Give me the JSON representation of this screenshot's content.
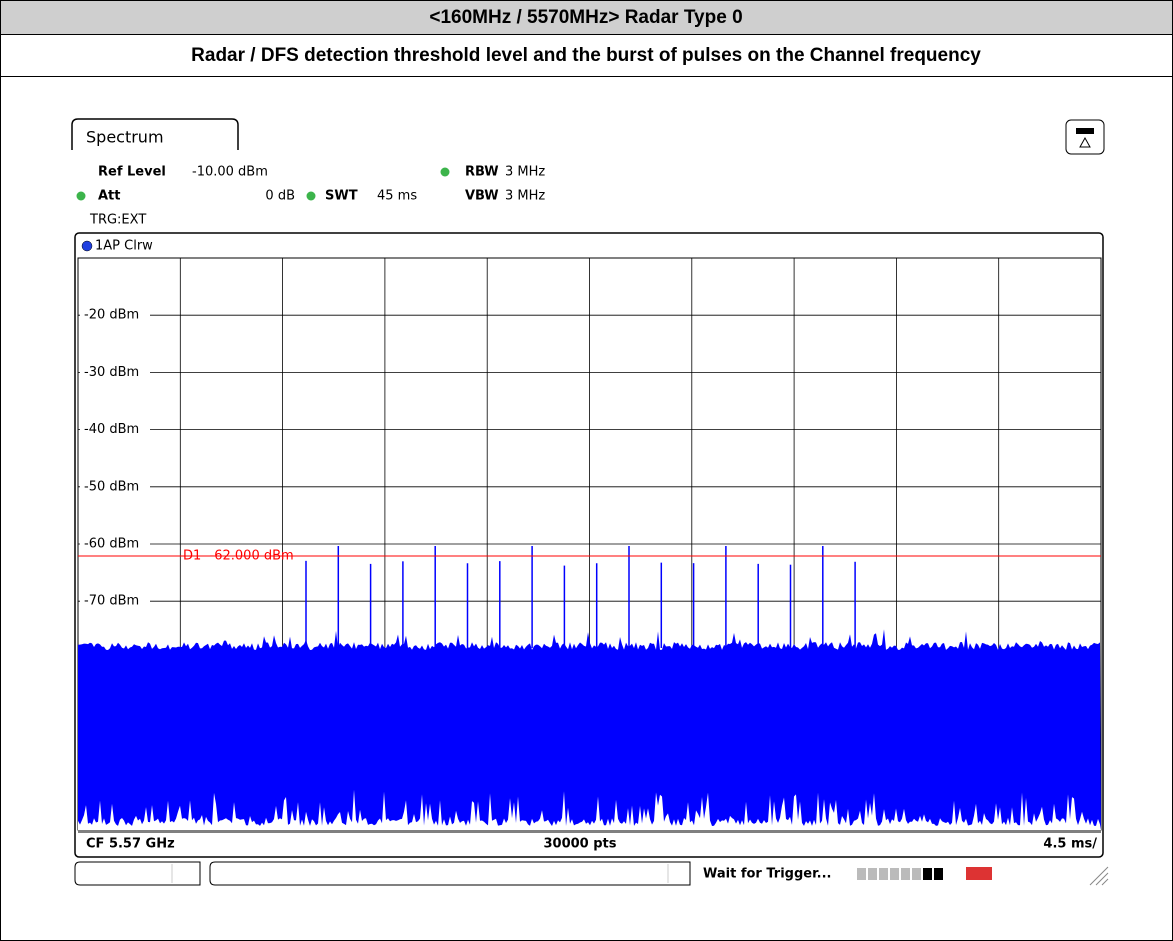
{
  "header": {
    "title": "<160MHz / 5570MHz> Radar Type 0",
    "subtitle": "Radar / DFS detection threshold level and the burst of pulses on the Channel frequency"
  },
  "screen": {
    "tab": "Spectrum",
    "ref_level_label": "Ref Level",
    "ref_level": "-10.00 dBm",
    "att_label": "Att",
    "att": "0 dB",
    "swt_label": "SWT",
    "swt": "45 ms",
    "rbw_label": "RBW",
    "rbw": "3 MHz",
    "vbw_label": "VBW",
    "vbw": "3 MHz",
    "trigger": "TRG:EXT",
    "trace": "1AP Clrw",
    "y_labels": [
      "-20 dBm",
      "-30 dBm",
      "-40 dBm",
      "-50 dBm",
      "-60 dBm",
      "-70 dBm"
    ],
    "threshold": "D1  -62.000 dBm",
    "footer_left": "CF 5.57 GHz",
    "footer_center": "30000 pts",
    "footer_right": "4.5 ms/",
    "status": "Wait for Trigger..."
  }
}
